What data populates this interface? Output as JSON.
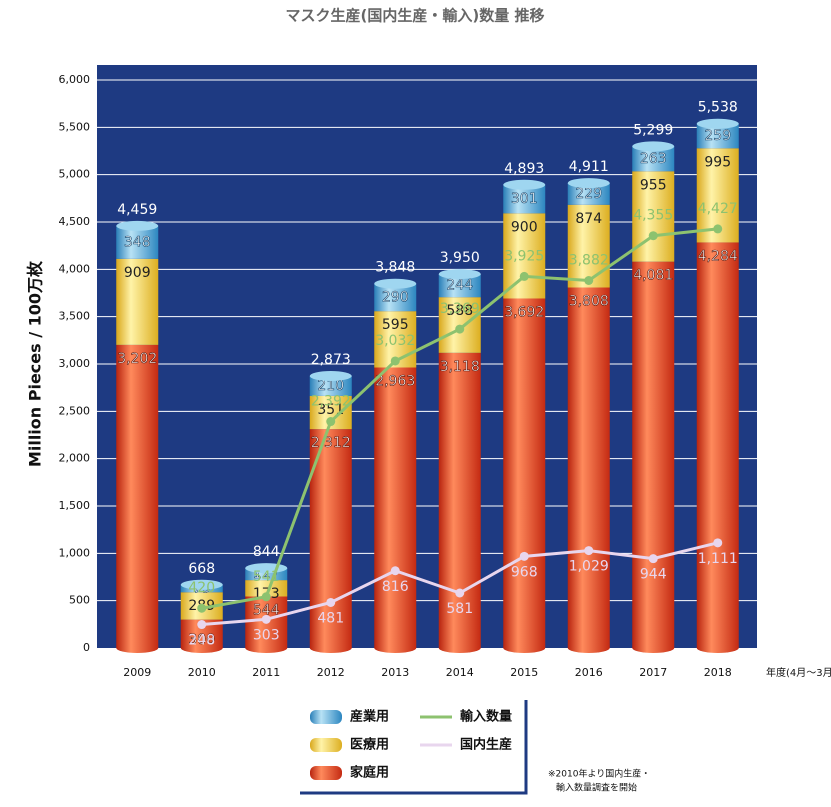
{
  "chart_data": {
    "type": "bar",
    "title": "マスク生産(国内生産・輸入)数量 推移",
    "y_label": "Million Pieces / 100万枚",
    "x_note": "年度(4月～3月)",
    "footnote": [
      "※2010年より国内生産・",
      "輸入数量調査を開始"
    ],
    "categories": [
      "2009",
      "2010",
      "2011",
      "2012",
      "2013",
      "2014",
      "2015",
      "2016",
      "2017",
      "2018"
    ],
    "ylim": [
      0,
      6000
    ],
    "yticks": [
      0,
      500,
      {
        "value": 1000,
        "label": "1,000"
      },
      {
        "value": 1500,
        "label": "1,500"
      },
      {
        "value": 2000,
        "label": "2,000"
      },
      {
        "value": 2500,
        "label": "2,500"
      },
      {
        "value": 3000,
        "label": "3,000"
      },
      {
        "value": 3500,
        "label": "3,500"
      },
      {
        "value": 4000,
        "label": "4,000"
      },
      {
        "value": 4500,
        "label": "4,500"
      },
      {
        "value": 5000,
        "label": "5,000"
      },
      {
        "value": 5500,
        "label": "5,500"
      },
      {
        "value": 6000,
        "label": "6,000"
      }
    ],
    "grid": true,
    "series": [
      {
        "name": "家庭用",
        "type": "bar",
        "color": "#e8452a",
        "values": [
          3202,
          300,
          544,
          2312,
          2963,
          3118,
          3692,
          3808,
          4081,
          4284
        ],
        "value_labels": [
          "3,202",
          "300",
          "544",
          "2,312",
          "2,963",
          "3,118",
          "3,692",
          "3,808",
          "4,081",
          "4,284"
        ]
      },
      {
        "name": "医療用",
        "type": "bar",
        "color": "#f5d84a",
        "values": [
          909,
          289,
          173,
          351,
          595,
          588,
          900,
          874,
          955,
          995
        ]
      },
      {
        "name": "産業用",
        "type": "bar",
        "color": "#4fa8d8",
        "values": [
          348,
          79,
          127,
          210,
          290,
          244,
          301,
          229,
          263,
          259
        ]
      },
      {
        "name": "輸入数量",
        "type": "line",
        "color": "#8dc26f",
        "values": [
          null,
          420,
          541,
          2392,
          3032,
          3369,
          3925,
          3882,
          4355,
          4427
        ],
        "value_labels": [
          null,
          "420",
          "541",
          "2,392",
          "3,032",
          "3,369",
          "3,925",
          "3,882",
          "4,355",
          "4,427"
        ]
      },
      {
        "name": "国内生産",
        "type": "line",
        "color": "#e8d6ee",
        "values": [
          null,
          248,
          303,
          481,
          816,
          581,
          968,
          1029,
          944,
          1111
        ],
        "value_labels": [
          null,
          "248",
          "303",
          "481",
          "816",
          "581",
          "968",
          "1,029",
          "944",
          "1,111"
        ]
      }
    ],
    "totals": [
      4459,
      668,
      844,
      2873,
      3848,
      3950,
      4893,
      4911,
      5299,
      5538
    ],
    "total_labels": [
      "4,459",
      "668",
      "844",
      "2,873",
      "3,848",
      "3,950",
      "4,893",
      "4,911",
      "5,299",
      "5,538"
    ],
    "legend_order": [
      2,
      3,
      1,
      4,
      0
    ]
  }
}
